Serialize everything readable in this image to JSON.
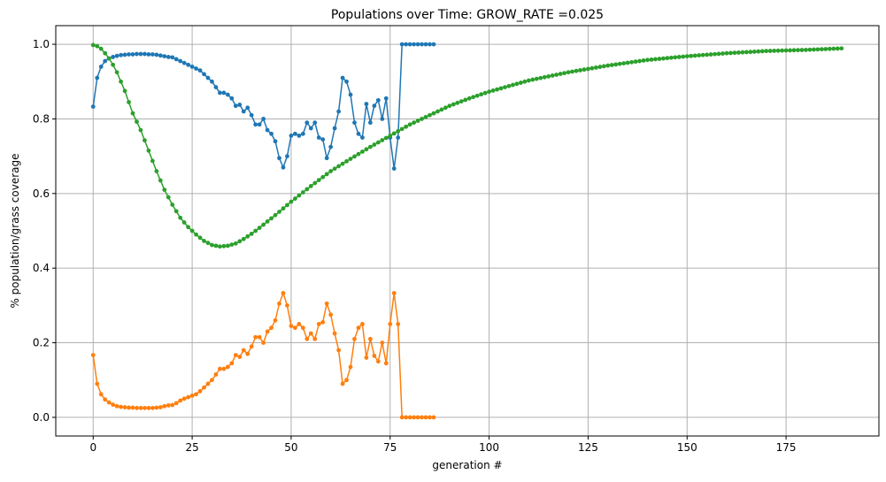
{
  "chart_data": {
    "type": "line",
    "title": "Populations over Time: GROW_RATE =0.025",
    "xlabel": "generation #",
    "ylabel": "% population/grass coverage",
    "xlim": [
      -9.45,
      198.45
    ],
    "ylim": [
      -0.05,
      1.05
    ],
    "xticks": [
      0,
      25,
      50,
      75,
      100,
      125,
      150,
      175
    ],
    "yticks": [
      0.0,
      0.2,
      0.4,
      0.6,
      0.8,
      1.0
    ],
    "xtick_labels": [
      "0",
      "25",
      "50",
      "75",
      "100",
      "125",
      "150",
      "175"
    ],
    "ytick_labels": [
      "0.0",
      "0.2",
      "0.4",
      "0.6",
      "0.8",
      "1.0"
    ],
    "grid": true,
    "legend": "none",
    "series": [
      {
        "color": "#1f77b4",
        "x": [
          0,
          1,
          2,
          3,
          4,
          5,
          6,
          7,
          8,
          9,
          10,
          11,
          12,
          13,
          14,
          15,
          16,
          17,
          18,
          19,
          20,
          21,
          22,
          23,
          24,
          25,
          26,
          27,
          28,
          29,
          30,
          31,
          32,
          33,
          34,
          35,
          36,
          37,
          38,
          39,
          40,
          41,
          42,
          43,
          44,
          45,
          46,
          47,
          48,
          49,
          50,
          51,
          52,
          53,
          54,
          55,
          56,
          57,
          58,
          59,
          60,
          61,
          62,
          63,
          64,
          65,
          66,
          67,
          68,
          69,
          70,
          71,
          72,
          73,
          74,
          75,
          76,
          77,
          78,
          79,
          80,
          81,
          82,
          83,
          84,
          85,
          86
        ],
        "y": [
          0.833,
          0.91,
          0.94,
          0.955,
          0.962,
          0.966,
          0.969,
          0.971,
          0.972,
          0.973,
          0.973,
          0.974,
          0.974,
          0.974,
          0.973,
          0.973,
          0.972,
          0.97,
          0.968,
          0.966,
          0.965,
          0.96,
          0.955,
          0.95,
          0.945,
          0.94,
          0.935,
          0.93,
          0.92,
          0.91,
          0.9,
          0.885,
          0.87,
          0.87,
          0.865,
          0.855,
          0.835,
          0.838,
          0.82,
          0.83,
          0.81,
          0.785,
          0.785,
          0.8,
          0.77,
          0.76,
          0.74,
          0.695,
          0.67,
          0.7,
          0.755,
          0.76,
          0.755,
          0.76,
          0.79,
          0.775,
          0.79,
          0.75,
          0.745,
          0.695,
          0.725,
          0.775,
          0.82,
          0.91,
          0.9,
          0.865,
          0.79,
          0.76,
          0.75,
          0.84,
          0.79,
          0.835,
          0.85,
          0.8,
          0.855,
          0.75,
          0.667,
          0.75,
          1.0,
          1.0,
          1.0,
          1.0,
          1.0,
          1.0,
          1.0,
          1.0,
          1.0
        ]
      },
      {
        "color": "#ff7f0e",
        "x": [
          0,
          1,
          2,
          3,
          4,
          5,
          6,
          7,
          8,
          9,
          10,
          11,
          12,
          13,
          14,
          15,
          16,
          17,
          18,
          19,
          20,
          21,
          22,
          23,
          24,
          25,
          26,
          27,
          28,
          29,
          30,
          31,
          32,
          33,
          34,
          35,
          36,
          37,
          38,
          39,
          40,
          41,
          42,
          43,
          44,
          45,
          46,
          47,
          48,
          49,
          50,
          51,
          52,
          53,
          54,
          55,
          56,
          57,
          58,
          59,
          60,
          61,
          62,
          63,
          64,
          65,
          66,
          67,
          68,
          69,
          70,
          71,
          72,
          73,
          74,
          75,
          76,
          77,
          78,
          79,
          80,
          81,
          82,
          83,
          84,
          85,
          86
        ],
        "y": [
          0.167,
          0.09,
          0.062,
          0.048,
          0.04,
          0.034,
          0.03,
          0.028,
          0.027,
          0.026,
          0.026,
          0.025,
          0.025,
          0.025,
          0.025,
          0.025,
          0.026,
          0.027,
          0.03,
          0.032,
          0.033,
          0.038,
          0.045,
          0.05,
          0.054,
          0.058,
          0.062,
          0.07,
          0.08,
          0.09,
          0.1,
          0.115,
          0.13,
          0.13,
          0.135,
          0.145,
          0.167,
          0.162,
          0.18,
          0.17,
          0.19,
          0.215,
          0.215,
          0.2,
          0.23,
          0.24,
          0.26,
          0.305,
          0.333,
          0.3,
          0.245,
          0.24,
          0.25,
          0.24,
          0.21,
          0.225,
          0.21,
          0.25,
          0.255,
          0.305,
          0.275,
          0.225,
          0.18,
          0.09,
          0.1,
          0.135,
          0.21,
          0.24,
          0.25,
          0.16,
          0.21,
          0.165,
          0.15,
          0.2,
          0.145,
          0.25,
          0.333,
          0.25,
          0.0,
          0.0,
          0.0,
          0.0,
          0.0,
          0.0,
          0.0,
          0.0,
          0.0
        ]
      },
      {
        "color": "#2ca02c",
        "x_start": 0,
        "x_end": 189,
        "y_anchors": [
          [
            0,
            0.998
          ],
          [
            1,
            0.995
          ],
          [
            2,
            0.988
          ],
          [
            3,
            0.976
          ],
          [
            4,
            0.962
          ],
          [
            5,
            0.945
          ],
          [
            6,
            0.925
          ],
          [
            7,
            0.9
          ],
          [
            8,
            0.875
          ],
          [
            9,
            0.845
          ],
          [
            10,
            0.815
          ],
          [
            12,
            0.77
          ],
          [
            14,
            0.715
          ],
          [
            16,
            0.66
          ],
          [
            18,
            0.61
          ],
          [
            20,
            0.57
          ],
          [
            22,
            0.535
          ],
          [
            24,
            0.51
          ],
          [
            26,
            0.49
          ],
          [
            28,
            0.473
          ],
          [
            30,
            0.462
          ],
          [
            32,
            0.458
          ],
          [
            34,
            0.46
          ],
          [
            36,
            0.466
          ],
          [
            38,
            0.478
          ],
          [
            40,
            0.492
          ],
          [
            42,
            0.508
          ],
          [
            44,
            0.525
          ],
          [
            46,
            0.542
          ],
          [
            48,
            0.56
          ],
          [
            50,
            0.578
          ],
          [
            55,
            0.62
          ],
          [
            60,
            0.66
          ],
          [
            65,
            0.693
          ],
          [
            70,
            0.725
          ],
          [
            75,
            0.755
          ],
          [
            80,
            0.785
          ],
          [
            85,
            0.81
          ],
          [
            90,
            0.835
          ],
          [
            95,
            0.855
          ],
          [
            100,
            0.873
          ],
          [
            110,
            0.903
          ],
          [
            120,
            0.925
          ],
          [
            130,
            0.943
          ],
          [
            140,
            0.958
          ],
          [
            150,
            0.968
          ],
          [
            160,
            0.976
          ],
          [
            170,
            0.982
          ],
          [
            180,
            0.985
          ],
          [
            189,
            0.989
          ]
        ]
      }
    ]
  }
}
